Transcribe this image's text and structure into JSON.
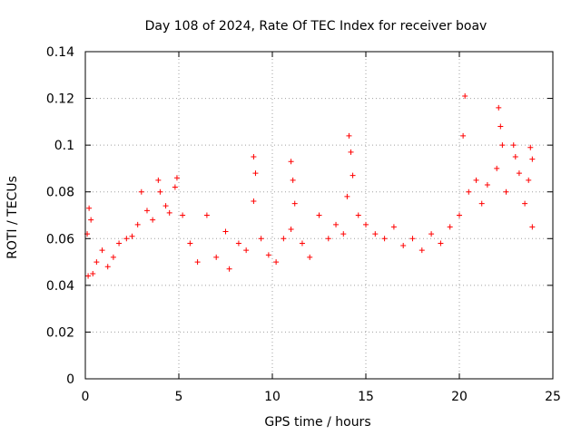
{
  "chart_data": {
    "type": "scatter",
    "title": "Day 108 of 2024, Rate Of TEC Index for receiver boav",
    "xlabel": "GPS time / hours",
    "ylabel": "ROTI / TECUs",
    "xlim": [
      0,
      25
    ],
    "ylim": [
      0,
      0.14
    ],
    "x_ticks": [
      0,
      5,
      10,
      15,
      20,
      25
    ],
    "x_tick_labels": [
      "0",
      "5",
      "10",
      "15",
      "20",
      "25"
    ],
    "y_ticks": [
      0,
      0.02,
      0.04,
      0.06,
      0.08,
      0.1,
      0.12,
      0.14
    ],
    "y_tick_labels": [
      "0",
      "0.02",
      "0.04",
      "0.06",
      "0.08",
      "0.1",
      "0.12",
      "0.14"
    ],
    "grid": true,
    "marker": "plus",
    "color": "#ff0000",
    "series": [
      {
        "points": [
          [
            0.1,
            0.062
          ],
          [
            0.2,
            0.073
          ],
          [
            0.3,
            0.068
          ],
          [
            0.15,
            0.044
          ],
          [
            0.4,
            0.045
          ],
          [
            0.6,
            0.05
          ],
          [
            0.9,
            0.055
          ],
          [
            1.2,
            0.048
          ],
          [
            1.5,
            0.052
          ],
          [
            1.8,
            0.058
          ],
          [
            2.2,
            0.06
          ],
          [
            2.5,
            0.061
          ],
          [
            2.8,
            0.066
          ],
          [
            3.0,
            0.08
          ],
          [
            3.3,
            0.072
          ],
          [
            3.6,
            0.068
          ],
          [
            3.9,
            0.085
          ],
          [
            4.0,
            0.08
          ],
          [
            4.3,
            0.074
          ],
          [
            4.5,
            0.071
          ],
          [
            4.8,
            0.082
          ],
          [
            4.9,
            0.086
          ],
          [
            5.2,
            0.07
          ],
          [
            5.6,
            0.058
          ],
          [
            6.0,
            0.05
          ],
          [
            6.5,
            0.07
          ],
          [
            7.0,
            0.052
          ],
          [
            7.5,
            0.063
          ],
          [
            7.7,
            0.047
          ],
          [
            8.2,
            0.058
          ],
          [
            8.6,
            0.055
          ],
          [
            9.0,
            0.095
          ],
          [
            9.1,
            0.088
          ],
          [
            9.0,
            0.076
          ],
          [
            9.4,
            0.06
          ],
          [
            9.8,
            0.053
          ],
          [
            10.2,
            0.05
          ],
          [
            10.6,
            0.06
          ],
          [
            11.0,
            0.093
          ],
          [
            11.1,
            0.085
          ],
          [
            11.2,
            0.075
          ],
          [
            11.0,
            0.064
          ],
          [
            11.6,
            0.058
          ],
          [
            12.0,
            0.052
          ],
          [
            12.5,
            0.07
          ],
          [
            13.0,
            0.06
          ],
          [
            13.4,
            0.066
          ],
          [
            13.8,
            0.062
          ],
          [
            14.1,
            0.104
          ],
          [
            14.2,
            0.097
          ],
          [
            14.3,
            0.087
          ],
          [
            14.0,
            0.078
          ],
          [
            14.6,
            0.07
          ],
          [
            15.0,
            0.066
          ],
          [
            15.5,
            0.062
          ],
          [
            16.0,
            0.06
          ],
          [
            16.5,
            0.065
          ],
          [
            17.0,
            0.057
          ],
          [
            17.5,
            0.06
          ],
          [
            18.0,
            0.055
          ],
          [
            18.5,
            0.062
          ],
          [
            19.0,
            0.058
          ],
          [
            19.5,
            0.065
          ],
          [
            20.0,
            0.07
          ],
          [
            20.2,
            0.104
          ],
          [
            20.3,
            0.121
          ],
          [
            20.5,
            0.08
          ],
          [
            20.9,
            0.085
          ],
          [
            21.2,
            0.075
          ],
          [
            21.5,
            0.083
          ],
          [
            22.1,
            0.116
          ],
          [
            22.2,
            0.108
          ],
          [
            22.3,
            0.1
          ],
          [
            22.0,
            0.09
          ],
          [
            22.5,
            0.08
          ],
          [
            22.9,
            0.1
          ],
          [
            23.0,
            0.095
          ],
          [
            23.2,
            0.088
          ],
          [
            23.5,
            0.075
          ],
          [
            23.8,
            0.099
          ],
          [
            23.9,
            0.094
          ],
          [
            23.7,
            0.085
          ],
          [
            23.9,
            0.065
          ]
        ]
      }
    ]
  }
}
